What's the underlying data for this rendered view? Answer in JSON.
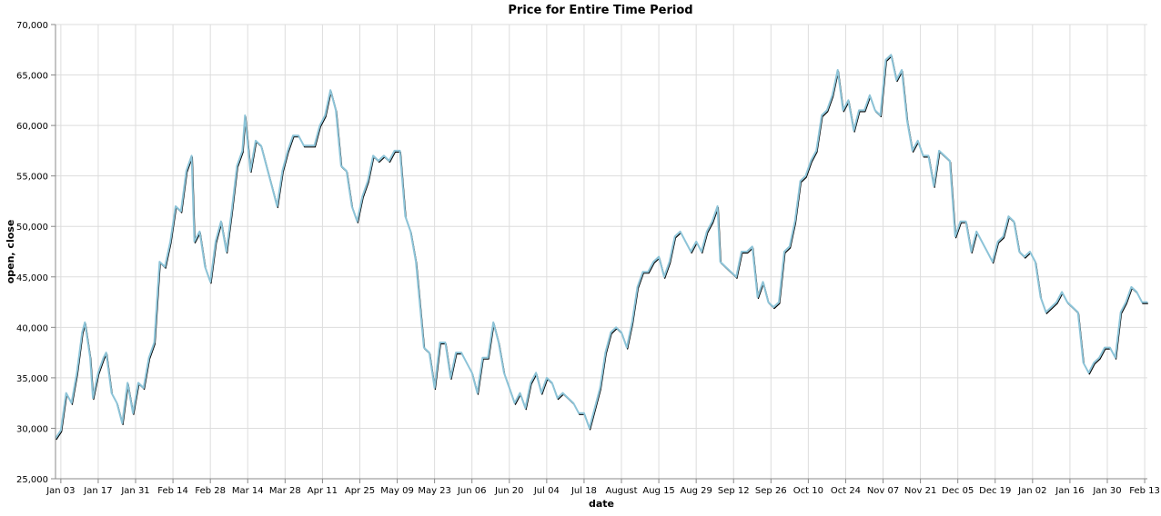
{
  "chart_data": {
    "type": "line",
    "title": "Price for Entire Time Period",
    "xlabel": "date",
    "ylabel": "open, close",
    "ylim": [
      25000,
      70000
    ],
    "y_ticks": [
      25000,
      30000,
      35000,
      40000,
      45000,
      50000,
      55000,
      60000,
      65000,
      70000
    ],
    "x_tick_labels": [
      "Jan 03",
      "Jan 17",
      "Jan 31",
      "Feb 14",
      "Feb 28",
      "Mar 14",
      "Mar 28",
      "Apr 11",
      "Apr 25",
      "May 09",
      "May 23",
      "Jun 06",
      "Jun 20",
      "Jul 04",
      "Jul 18",
      "August",
      "Aug 15",
      "Aug 29",
      "Sep 12",
      "Sep 26",
      "Oct 10",
      "Oct 24",
      "Nov 07",
      "Nov 21",
      "Dec 05",
      "Dec 19",
      "Jan 02",
      "Jan 16",
      "Jan 30",
      "Feb 13"
    ],
    "x_range": [
      "2021-01-01",
      "2022-02-14"
    ],
    "grid": true,
    "series_colors": [
      "#000000",
      "#8dc4d8"
    ],
    "series": [
      {
        "points": [
          [
            "2021-01-01",
            29000
          ],
          [
            "2021-01-03",
            29800
          ],
          [
            "2021-01-05",
            33500
          ],
          [
            "2021-01-07",
            32500
          ],
          [
            "2021-01-09",
            35500
          ],
          [
            "2021-01-11",
            39500
          ],
          [
            "2021-01-12",
            40500
          ],
          [
            "2021-01-14",
            37000
          ],
          [
            "2021-01-15",
            33000
          ],
          [
            "2021-01-17",
            35500
          ],
          [
            "2021-01-19",
            37000
          ],
          [
            "2021-01-20",
            37500
          ],
          [
            "2021-01-22",
            33500
          ],
          [
            "2021-01-24",
            32500
          ],
          [
            "2021-01-26",
            30500
          ],
          [
            "2021-01-28",
            34500
          ],
          [
            "2021-01-30",
            31500
          ],
          [
            "2021-02-01",
            34500
          ],
          [
            "2021-02-03",
            34000
          ],
          [
            "2021-02-05",
            37000
          ],
          [
            "2021-02-07",
            38500
          ],
          [
            "2021-02-09",
            46500
          ],
          [
            "2021-02-11",
            46000
          ],
          [
            "2021-02-13",
            48500
          ],
          [
            "2021-02-15",
            52000
          ],
          [
            "2021-02-17",
            51500
          ],
          [
            "2021-02-19",
            55500
          ],
          [
            "2021-02-21",
            57000
          ],
          [
            "2021-02-22",
            48500
          ],
          [
            "2021-02-24",
            49500
          ],
          [
            "2021-02-26",
            46000
          ],
          [
            "2021-02-28",
            44500
          ],
          [
            "2021-03-02",
            48500
          ],
          [
            "2021-03-04",
            50500
          ],
          [
            "2021-03-06",
            47500
          ],
          [
            "2021-03-08",
            51500
          ],
          [
            "2021-03-10",
            56000
          ],
          [
            "2021-03-12",
            57500
          ],
          [
            "2021-03-13",
            61000
          ],
          [
            "2021-03-15",
            55500
          ],
          [
            "2021-03-17",
            58500
          ],
          [
            "2021-03-19",
            58000
          ],
          [
            "2021-03-21",
            56000
          ],
          [
            "2021-03-23",
            54000
          ],
          [
            "2021-03-25",
            52000
          ],
          [
            "2021-03-27",
            55500
          ],
          [
            "2021-03-29",
            57500
          ],
          [
            "2021-03-31",
            59000
          ],
          [
            "2021-04-02",
            59000
          ],
          [
            "2021-04-04",
            58000
          ],
          [
            "2021-04-06",
            58000
          ],
          [
            "2021-04-08",
            58000
          ],
          [
            "2021-04-10",
            60000
          ],
          [
            "2021-04-12",
            61000
          ],
          [
            "2021-04-14",
            63500
          ],
          [
            "2021-04-16",
            61500
          ],
          [
            "2021-04-18",
            56000
          ],
          [
            "2021-04-20",
            55500
          ],
          [
            "2021-04-22",
            52000
          ],
          [
            "2021-04-24",
            50500
          ],
          [
            "2021-04-26",
            53000
          ],
          [
            "2021-04-28",
            54500
          ],
          [
            "2021-04-30",
            57000
          ],
          [
            "2021-05-02",
            56500
          ],
          [
            "2021-05-04",
            57000
          ],
          [
            "2021-05-06",
            56500
          ],
          [
            "2021-05-08",
            57500
          ],
          [
            "2021-05-10",
            57500
          ],
          [
            "2021-05-12",
            51000
          ],
          [
            "2021-05-14",
            49500
          ],
          [
            "2021-05-16",
            46500
          ],
          [
            "2021-05-19",
            38000
          ],
          [
            "2021-05-21",
            37500
          ],
          [
            "2021-05-23",
            34000
          ],
          [
            "2021-05-25",
            38500
          ],
          [
            "2021-05-27",
            38500
          ],
          [
            "2021-05-29",
            35000
          ],
          [
            "2021-05-31",
            37500
          ],
          [
            "2021-06-02",
            37500
          ],
          [
            "2021-06-04",
            36500
          ],
          [
            "2021-06-06",
            35500
          ],
          [
            "2021-06-08",
            33500
          ],
          [
            "2021-06-10",
            37000
          ],
          [
            "2021-06-12",
            37000
          ],
          [
            "2021-06-14",
            40500
          ],
          [
            "2021-06-16",
            38500
          ],
          [
            "2021-06-18",
            35500
          ],
          [
            "2021-06-20",
            34000
          ],
          [
            "2021-06-22",
            32500
          ],
          [
            "2021-06-24",
            33500
          ],
          [
            "2021-06-26",
            32000
          ],
          [
            "2021-06-28",
            34500
          ],
          [
            "2021-06-30",
            35500
          ],
          [
            "2021-07-02",
            33500
          ],
          [
            "2021-07-04",
            35000
          ],
          [
            "2021-07-06",
            34500
          ],
          [
            "2021-07-08",
            33000
          ],
          [
            "2021-07-10",
            33500
          ],
          [
            "2021-07-12",
            33000
          ],
          [
            "2021-07-14",
            32500
          ],
          [
            "2021-07-16",
            31500
          ],
          [
            "2021-07-18",
            31500
          ],
          [
            "2021-07-20",
            30000
          ],
          [
            "2021-07-22",
            32000
          ],
          [
            "2021-07-24",
            34000
          ],
          [
            "2021-07-26",
            37500
          ],
          [
            "2021-07-28",
            39500
          ],
          [
            "2021-07-30",
            40000
          ],
          [
            "2021-08-01",
            39500
          ],
          [
            "2021-08-03",
            38000
          ],
          [
            "2021-08-05",
            40500
          ],
          [
            "2021-08-07",
            44000
          ],
          [
            "2021-08-09",
            45500
          ],
          [
            "2021-08-11",
            45500
          ],
          [
            "2021-08-13",
            46500
          ],
          [
            "2021-08-15",
            47000
          ],
          [
            "2021-08-17",
            45000
          ],
          [
            "2021-08-19",
            46500
          ],
          [
            "2021-08-21",
            49000
          ],
          [
            "2021-08-23",
            49500
          ],
          [
            "2021-08-25",
            48500
          ],
          [
            "2021-08-27",
            47500
          ],
          [
            "2021-08-29",
            48500
          ],
          [
            "2021-08-31",
            47500
          ],
          [
            "2021-09-02",
            49500
          ],
          [
            "2021-09-04",
            50500
          ],
          [
            "2021-09-06",
            52000
          ],
          [
            "2021-09-07",
            46500
          ],
          [
            "2021-09-09",
            46000
          ],
          [
            "2021-09-11",
            45500
          ],
          [
            "2021-09-13",
            45000
          ],
          [
            "2021-09-15",
            47500
          ],
          [
            "2021-09-17",
            47500
          ],
          [
            "2021-09-19",
            48000
          ],
          [
            "2021-09-21",
            43000
          ],
          [
            "2021-09-23",
            44500
          ],
          [
            "2021-09-25",
            42500
          ],
          [
            "2021-09-27",
            42000
          ],
          [
            "2021-09-29",
            42500
          ],
          [
            "2021-10-01",
            47500
          ],
          [
            "2021-10-03",
            48000
          ],
          [
            "2021-10-05",
            50500
          ],
          [
            "2021-10-07",
            54500
          ],
          [
            "2021-10-09",
            55000
          ],
          [
            "2021-10-11",
            56500
          ],
          [
            "2021-10-13",
            57500
          ],
          [
            "2021-10-15",
            61000
          ],
          [
            "2021-10-17",
            61500
          ],
          [
            "2021-10-19",
            63000
          ],
          [
            "2021-10-21",
            65500
          ],
          [
            "2021-10-23",
            61500
          ],
          [
            "2021-10-25",
            62500
          ],
          [
            "2021-10-27",
            59500
          ],
          [
            "2021-10-29",
            61500
          ],
          [
            "2021-10-31",
            61500
          ],
          [
            "2021-11-02",
            63000
          ],
          [
            "2021-11-04",
            61500
          ],
          [
            "2021-11-06",
            61000
          ],
          [
            "2021-11-08",
            66500
          ],
          [
            "2021-11-10",
            67000
          ],
          [
            "2021-11-12",
            64500
          ],
          [
            "2021-11-14",
            65500
          ],
          [
            "2021-11-16",
            60500
          ],
          [
            "2021-11-18",
            57500
          ],
          [
            "2021-11-20",
            58500
          ],
          [
            "2021-11-22",
            57000
          ],
          [
            "2021-11-24",
            57000
          ],
          [
            "2021-11-26",
            54000
          ],
          [
            "2021-11-28",
            57500
          ],
          [
            "2021-11-30",
            57000
          ],
          [
            "2021-12-02",
            56500
          ],
          [
            "2021-12-04",
            49000
          ],
          [
            "2021-12-06",
            50500
          ],
          [
            "2021-12-08",
            50500
          ],
          [
            "2021-12-10",
            47500
          ],
          [
            "2021-12-12",
            49500
          ],
          [
            "2021-12-14",
            48500
          ],
          [
            "2021-12-16",
            47500
          ],
          [
            "2021-12-18",
            46500
          ],
          [
            "2021-12-20",
            48500
          ],
          [
            "2021-12-22",
            49000
          ],
          [
            "2021-12-24",
            51000
          ],
          [
            "2021-12-26",
            50500
          ],
          [
            "2021-12-28",
            47500
          ],
          [
            "2021-12-30",
            47000
          ],
          [
            "2022-01-01",
            47500
          ],
          [
            "2022-01-03",
            46500
          ],
          [
            "2022-01-05",
            43000
          ],
          [
            "2022-01-07",
            41500
          ],
          [
            "2022-01-09",
            42000
          ],
          [
            "2022-01-11",
            42500
          ],
          [
            "2022-01-13",
            43500
          ],
          [
            "2022-01-15",
            42500
          ],
          [
            "2022-01-17",
            42000
          ],
          [
            "2022-01-19",
            41500
          ],
          [
            "2022-01-21",
            36500
          ],
          [
            "2022-01-23",
            35500
          ],
          [
            "2022-01-25",
            36500
          ],
          [
            "2022-01-27",
            37000
          ],
          [
            "2022-01-29",
            38000
          ],
          [
            "2022-01-31",
            38000
          ],
          [
            "2022-02-02",
            37000
          ],
          [
            "2022-02-04",
            41500
          ],
          [
            "2022-02-06",
            42500
          ],
          [
            "2022-02-08",
            44000
          ],
          [
            "2022-02-10",
            43500
          ],
          [
            "2022-02-12",
            42500
          ],
          [
            "2022-02-14",
            42500
          ]
        ]
      }
    ]
  }
}
